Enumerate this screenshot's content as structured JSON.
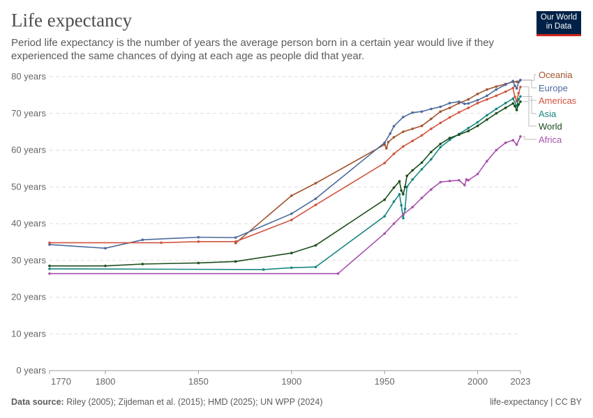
{
  "header": {
    "title": "Life expectancy",
    "subtitle": "Period life expectancy is the number of years the average person born in a certain year would live if they experienced the same chances of dying at each age as people did that year.",
    "logo": "Our World in Data"
  },
  "footer": {
    "source_label": "Data source:",
    "source": "Riley (2005); Zijdeman et al. (2015); HMD (2025); UN WPP (2024)",
    "right": "life-expectancy | CC BY"
  },
  "chart_data": {
    "type": "line",
    "title": "Life expectancy",
    "xlabel": "",
    "ylabel": "",
    "xlim": [
      1770,
      2023
    ],
    "ylim": [
      0,
      80
    ],
    "grid": "horizontal dashed",
    "legend": "right (labels at line ends)",
    "x_ticks": [
      "1770",
      "1800",
      "1850",
      "1900",
      "1950",
      "2000",
      "2023"
    ],
    "y_ticks": [
      "0 years",
      "10 years",
      "20 years",
      "30 years",
      "40 years",
      "50 years",
      "60 years",
      "70 years",
      "80 years"
    ],
    "series": [
      {
        "name": "Oceania",
        "color": "#a2522b",
        "points": [
          [
            1870,
            34.7
          ],
          [
            1900,
            47.6
          ],
          [
            1913,
            51
          ],
          [
            1950,
            61.5
          ],
          [
            1951,
            60.5
          ],
          [
            1952,
            62.2
          ],
          [
            1955,
            63.5
          ],
          [
            1960,
            65
          ],
          [
            1965,
            65.8
          ],
          [
            1970,
            66.6
          ],
          [
            1975,
            68.5
          ],
          [
            1980,
            70.5
          ],
          [
            1985,
            71.5
          ],
          [
            1990,
            72.8
          ],
          [
            1995,
            73.8
          ],
          [
            2000,
            75.3
          ],
          [
            2005,
            76.5
          ],
          [
            2010,
            77.3
          ],
          [
            2015,
            78
          ],
          [
            2019,
            78.6
          ],
          [
            2021,
            78.6
          ],
          [
            2023,
            79
          ]
        ]
      },
      {
        "name": "Europe",
        "color": "#4c6a9c",
        "points": [
          [
            1770,
            34.3
          ],
          [
            1800,
            33.3
          ],
          [
            1820,
            35.6
          ],
          [
            1850,
            36.3
          ],
          [
            1870,
            36.2
          ],
          [
            1900,
            42.7
          ],
          [
            1913,
            46.8
          ],
          [
            1950,
            62
          ],
          [
            1953,
            64.5
          ],
          [
            1955,
            66.5
          ],
          [
            1960,
            69
          ],
          [
            1965,
            70.2
          ],
          [
            1970,
            70.5
          ],
          [
            1975,
            71.2
          ],
          [
            1980,
            71.8
          ],
          [
            1985,
            72.8
          ],
          [
            1990,
            73.2
          ],
          [
            1993,
            72.6
          ],
          [
            1995,
            72.7
          ],
          [
            2000,
            73.6
          ],
          [
            2005,
            74.8
          ],
          [
            2010,
            76.5
          ],
          [
            2015,
            77.8
          ],
          [
            2019,
            78.8
          ],
          [
            2020,
            77.5
          ],
          [
            2021,
            76.8
          ],
          [
            2022,
            78.5
          ],
          [
            2023,
            79.1
          ]
        ]
      },
      {
        "name": "Americas",
        "color": "#d0533d",
        "points": [
          [
            1770,
            34.8
          ],
          [
            1830,
            34.8
          ],
          [
            1850,
            35.1
          ],
          [
            1870,
            35.1
          ],
          [
            1900,
            41
          ],
          [
            1913,
            45.1
          ],
          [
            1950,
            56.5
          ],
          [
            1955,
            59
          ],
          [
            1960,
            61
          ],
          [
            1965,
            62.5
          ],
          [
            1970,
            64
          ],
          [
            1975,
            65.8
          ],
          [
            1980,
            67.4
          ],
          [
            1985,
            68.9
          ],
          [
            1990,
            70.3
          ],
          [
            1995,
            71.5
          ],
          [
            2000,
            72.8
          ],
          [
            2005,
            73.8
          ],
          [
            2010,
            74.8
          ],
          [
            2015,
            75.9
          ],
          [
            2019,
            76.9
          ],
          [
            2020,
            74.5
          ],
          [
            2021,
            73.3
          ],
          [
            2022,
            75.5
          ],
          [
            2023,
            77.2
          ]
        ]
      },
      {
        "name": "Asia",
        "color": "#17877f",
        "points": [
          [
            1770,
            27.7
          ],
          [
            1885,
            27.5
          ],
          [
            1900,
            28
          ],
          [
            1913,
            28.2
          ],
          [
            1950,
            42
          ],
          [
            1955,
            46
          ],
          [
            1958,
            48
          ],
          [
            1959,
            45
          ],
          [
            1960,
            41.5
          ],
          [
            1961,
            44
          ],
          [
            1962,
            50
          ],
          [
            1965,
            52
          ],
          [
            1970,
            54.8
          ],
          [
            1975,
            57.5
          ],
          [
            1980,
            60.8
          ],
          [
            1985,
            62.8
          ],
          [
            1990,
            64.4
          ],
          [
            1995,
            66
          ],
          [
            2000,
            67.6
          ],
          [
            2005,
            69.5
          ],
          [
            2010,
            71.2
          ],
          [
            2015,
            72.8
          ],
          [
            2019,
            74
          ],
          [
            2021,
            72
          ],
          [
            2022,
            73.8
          ],
          [
            2023,
            74.6
          ]
        ]
      },
      {
        "name": "World",
        "color": "#1b4d1b",
        "points": [
          [
            1770,
            28.5
          ],
          [
            1800,
            28.5
          ],
          [
            1820,
            29
          ],
          [
            1850,
            29.3
          ],
          [
            1870,
            29.7
          ],
          [
            1900,
            32
          ],
          [
            1913,
            34.1
          ],
          [
            1950,
            46.5
          ],
          [
            1955,
            49.8
          ],
          [
            1958,
            51.5
          ],
          [
            1959,
            49
          ],
          [
            1960,
            48
          ],
          [
            1961,
            50
          ],
          [
            1962,
            53
          ],
          [
            1965,
            54.5
          ],
          [
            1970,
            56.6
          ],
          [
            1975,
            59.5
          ],
          [
            1980,
            61.7
          ],
          [
            1985,
            63.3
          ],
          [
            1990,
            64.2
          ],
          [
            1995,
            65.2
          ],
          [
            2000,
            66.6
          ],
          [
            2005,
            68.3
          ],
          [
            2010,
            70
          ],
          [
            2015,
            71.5
          ],
          [
            2019,
            72.7
          ],
          [
            2020,
            72
          ],
          [
            2021,
            70.9
          ],
          [
            2022,
            72.4
          ],
          [
            2023,
            73.2
          ]
        ]
      },
      {
        "name": "Africa",
        "color": "#a652ab",
        "points": [
          [
            1770,
            26.4
          ],
          [
            1925,
            26.4
          ],
          [
            1950,
            37.3
          ],
          [
            1955,
            40
          ],
          [
            1960,
            42.5
          ],
          [
            1965,
            44.5
          ],
          [
            1970,
            47
          ],
          [
            1975,
            49.3
          ],
          [
            1980,
            51.3
          ],
          [
            1985,
            51.6
          ],
          [
            1990,
            51.8
          ],
          [
            1993,
            50.5
          ],
          [
            1994,
            52
          ],
          [
            1995,
            51.8
          ],
          [
            2000,
            53.5
          ],
          [
            2005,
            57
          ],
          [
            2010,
            60
          ],
          [
            2015,
            62
          ],
          [
            2019,
            62.7
          ],
          [
            2021,
            61.5
          ],
          [
            2023,
            63.7
          ]
        ]
      }
    ]
  }
}
